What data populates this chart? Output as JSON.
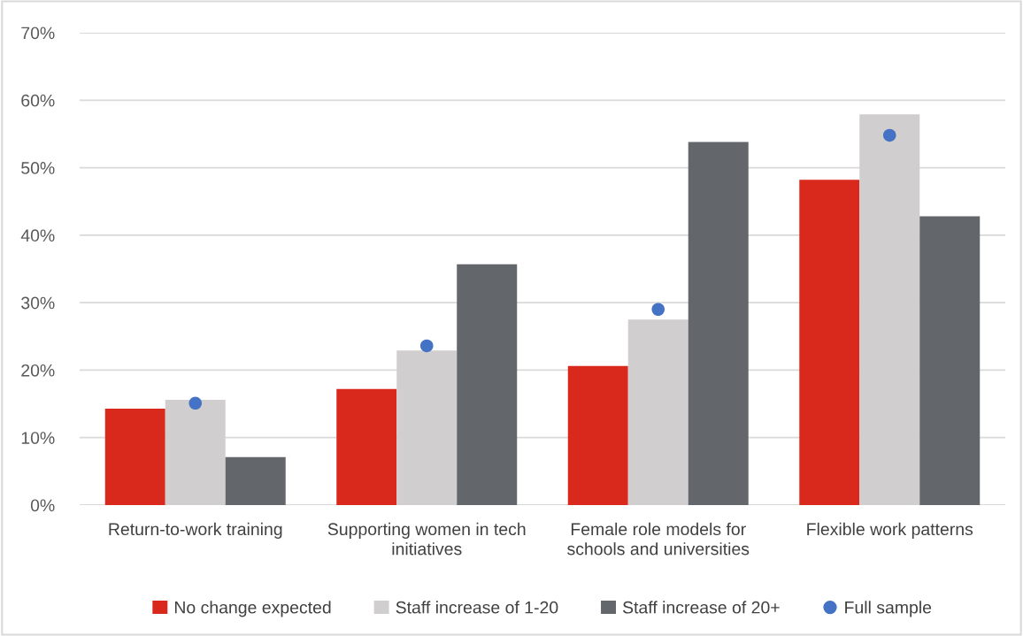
{
  "chart_data": {
    "type": "bar",
    "categories": [
      "Return-to-work training",
      "Supporting women in tech initiatives",
      "Female role models for schools and universities",
      "Flexible work patterns"
    ],
    "series": [
      {
        "name": "No change expected",
        "color": "#d9291c",
        "values": [
          14.3,
          17.2,
          20.6,
          48.2
        ]
      },
      {
        "name": "Staff increase of 1-20",
        "color": "#d0cece",
        "values": [
          15.6,
          22.9,
          27.5,
          57.9
        ]
      },
      {
        "name": "Staff increase of 20+",
        "color": "#63666a",
        "values": [
          7.1,
          35.7,
          53.8,
          42.8
        ]
      },
      {
        "name": "Full sample",
        "type": "scatter",
        "color": "#4472c4",
        "marker": "circle",
        "x": [
          "Return-to-work training",
          "Supporting women in tech initiatives",
          "Female role models for schools and universities",
          "Flexible work patterns"
        ],
        "values": [
          15.1,
          23.6,
          29.0,
          54.8
        ]
      }
    ],
    "ylim": [
      0,
      70
    ],
    "yticks": [
      {
        "value": 0,
        "label": "0%"
      },
      {
        "value": 10,
        "label": "10%"
      },
      {
        "value": 20,
        "label": "20%"
      },
      {
        "value": 30,
        "label": "30%"
      },
      {
        "value": 40,
        "label": "40%"
      },
      {
        "value": 50,
        "label": "50%"
      },
      {
        "value": 60,
        "label": "60%"
      },
      {
        "value": 70,
        "label": "70%"
      }
    ],
    "grid": "y",
    "legend": "bottom"
  }
}
